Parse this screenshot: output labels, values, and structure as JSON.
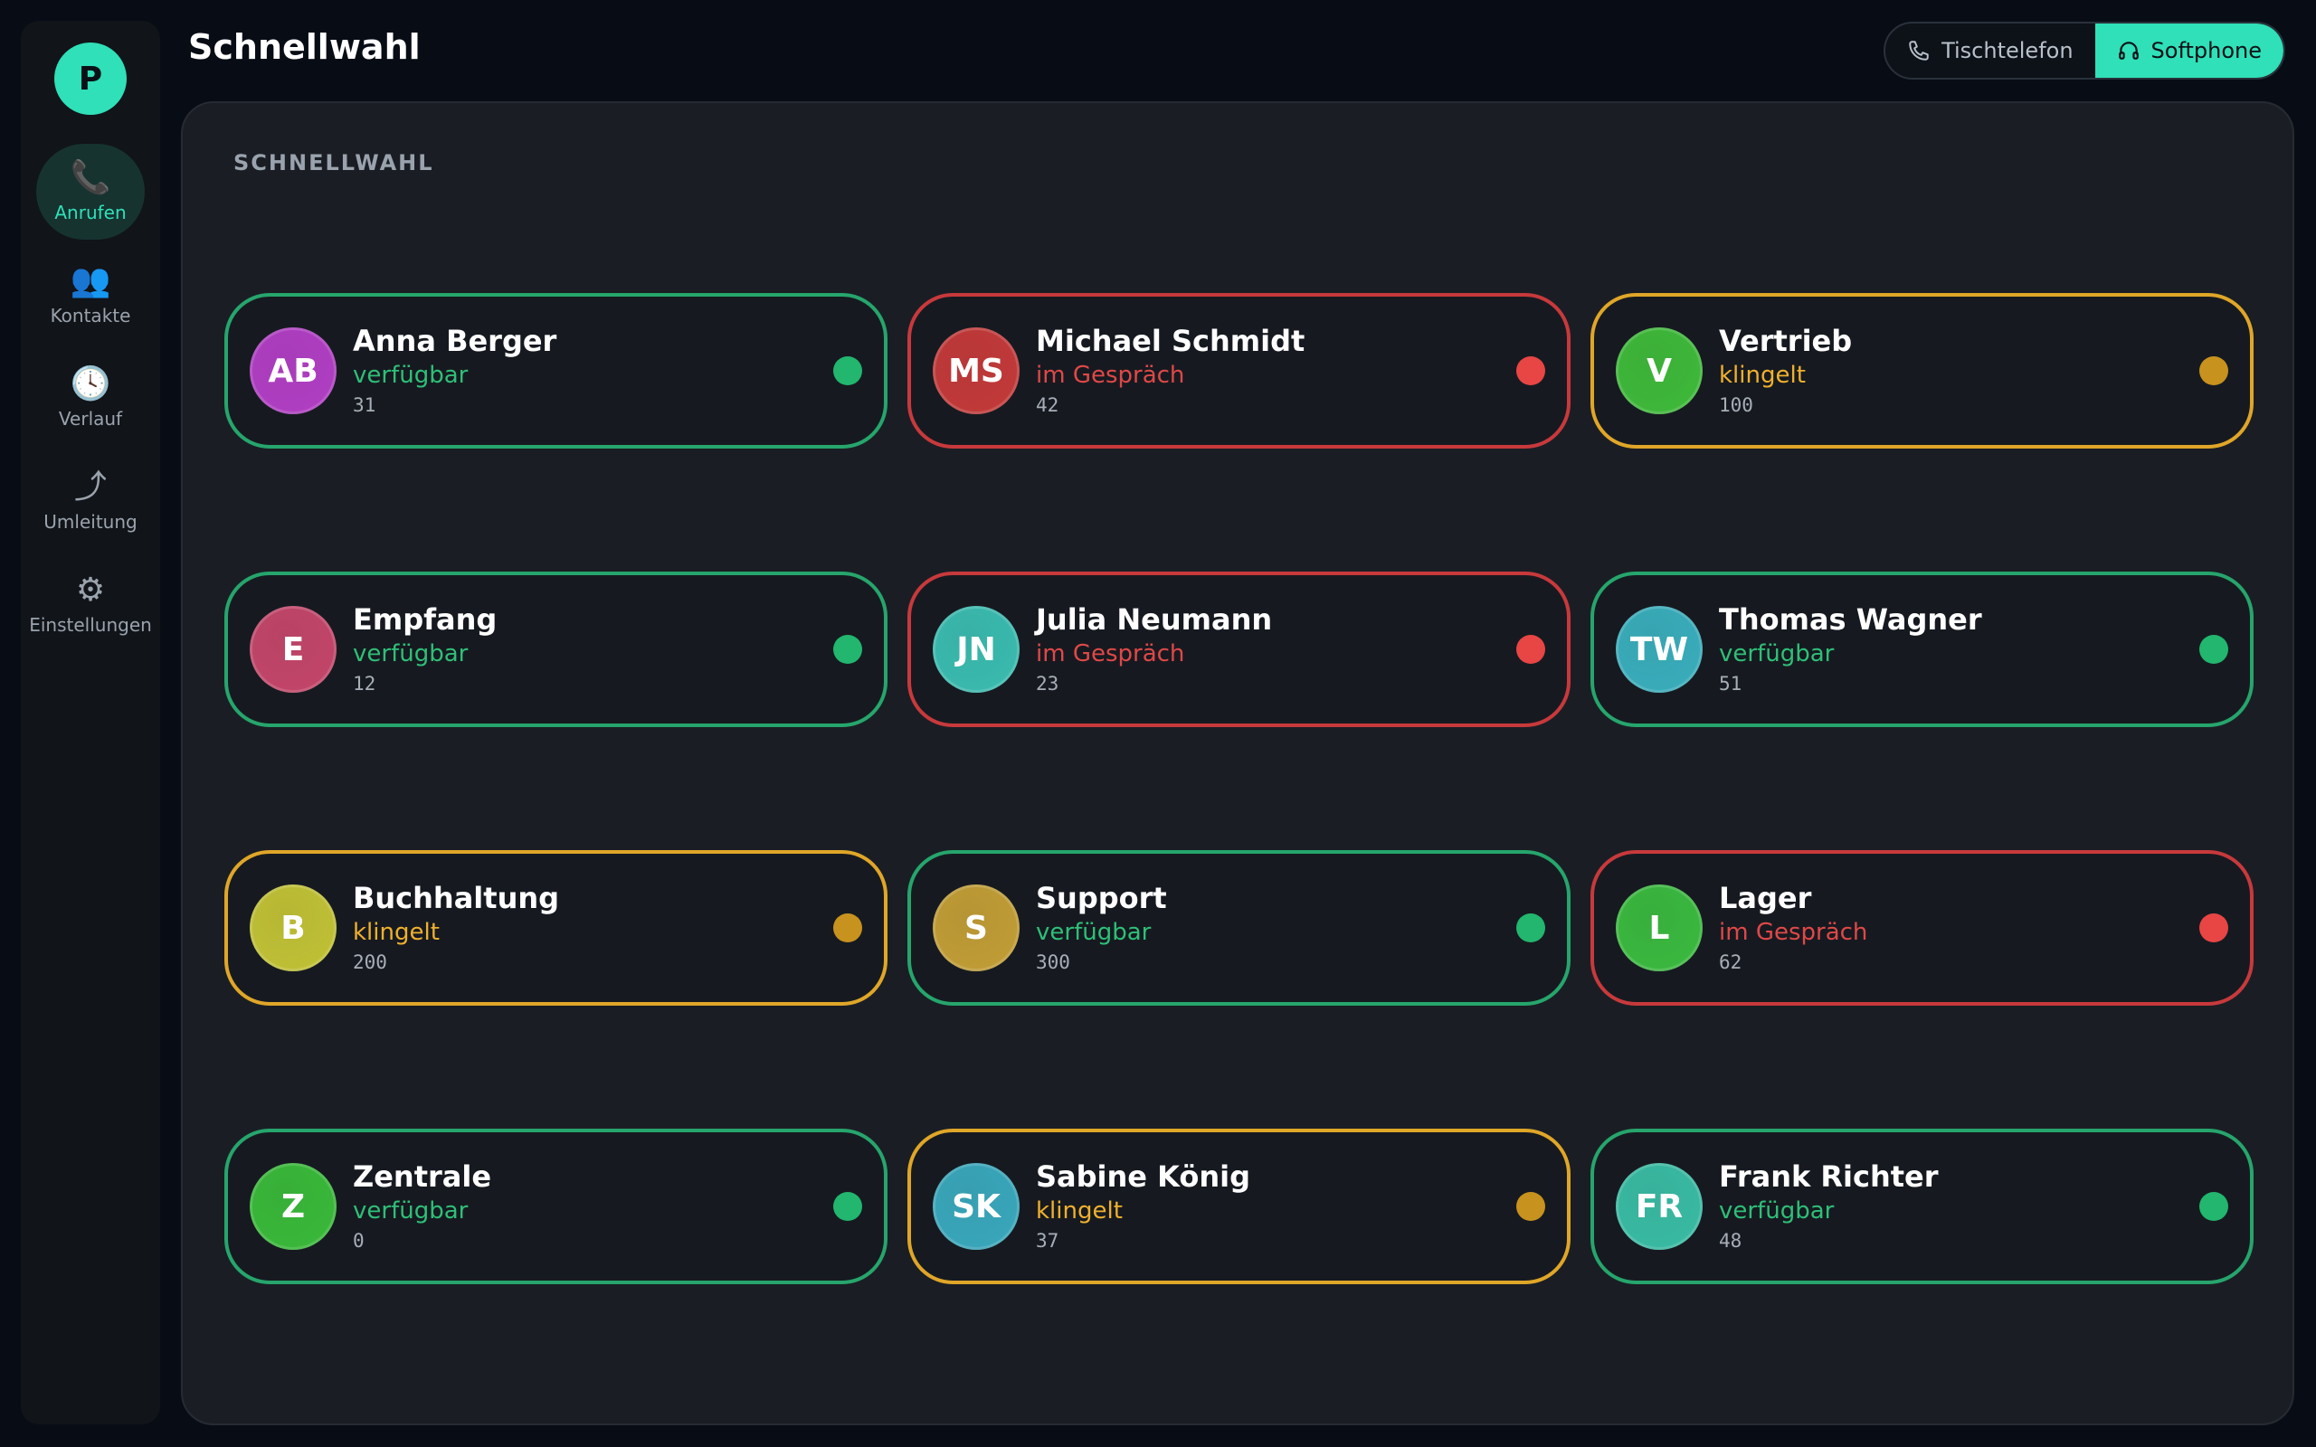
{
  "sidebar": {
    "logo_letter": "P",
    "items": [
      {
        "label": "Anrufen",
        "icon": "phone-icon",
        "glyph": "📞",
        "active": true
      },
      {
        "label": "Kontakte",
        "icon": "contacts-icon",
        "glyph": "👥",
        "active": false
      },
      {
        "label": "Verlauf",
        "icon": "clock-icon",
        "glyph": "🕓",
        "active": false
      },
      {
        "label": "Umleitung",
        "icon": "forward-icon",
        "glyph": "⤴",
        "active": false
      },
      {
        "label": "Einstellungen",
        "icon": "gear-icon",
        "glyph": "⚙",
        "active": false
      }
    ]
  },
  "header": {
    "title": "Schnellwahl",
    "device_toggle": {
      "desk_phone": "Tischtelefon",
      "softphone": "Softphone",
      "selected": "Softphone"
    }
  },
  "panel": {
    "heading": "SCHNELLWAHL"
  },
  "status_colors": {
    "available": "#26a56c",
    "busy": "#c8393c",
    "ringing": "#e0a628",
    "accent": "#2fe0b8"
  },
  "contacts": [
    {
      "initials": "AB",
      "name": "Anna Berger",
      "status": "verfügbar",
      "state": "available",
      "ext": "31",
      "avatar_color": "#b23fc4"
    },
    {
      "initials": "MS",
      "name": "Michael Schmidt",
      "status": "im Gespräch",
      "state": "busy",
      "ext": "42",
      "avatar_color": "#c43a3a"
    },
    {
      "initials": "V",
      "name": "Vertrieb",
      "status": "klingelt",
      "state": "ringing",
      "ext": "100",
      "avatar_color": "#3fba3a"
    },
    {
      "initials": "E",
      "name": "Empfang",
      "status": "verfügbar",
      "state": "available",
      "ext": "12",
      "avatar_color": "#c4466a"
    },
    {
      "initials": "JN",
      "name": "Julia Neumann",
      "status": "im Gespräch",
      "state": "busy",
      "ext": "23",
      "avatar_color": "#3bbcb0"
    },
    {
      "initials": "TW",
      "name": "Thomas Wagner",
      "status": "verfügbar",
      "state": "available",
      "ext": "51",
      "avatar_color": "#3aaebc"
    },
    {
      "initials": "B",
      "name": "Buchhaltung",
      "status": "klingelt",
      "state": "ringing",
      "ext": "200",
      "avatar_color": "#c2c236"
    },
    {
      "initials": "S",
      "name": "Support",
      "status": "verfügbar",
      "state": "available",
      "ext": "300",
      "avatar_color": "#c29e36"
    },
    {
      "initials": "L",
      "name": "Lager",
      "status": "im Gespräch",
      "state": "busy",
      "ext": "62",
      "avatar_color": "#3bba3f"
    },
    {
      "initials": "Z",
      "name": "Zentrale",
      "status": "verfügbar",
      "state": "available",
      "ext": "0",
      "avatar_color": "#3aba3a"
    },
    {
      "initials": "SK",
      "name": "Sabine König",
      "status": "klingelt",
      "state": "ringing",
      "ext": "37",
      "avatar_color": "#3aa8bc"
    },
    {
      "initials": "FR",
      "name": "Frank Richter",
      "status": "verfügbar",
      "state": "available",
      "ext": "48",
      "avatar_color": "#3abca4"
    }
  ]
}
